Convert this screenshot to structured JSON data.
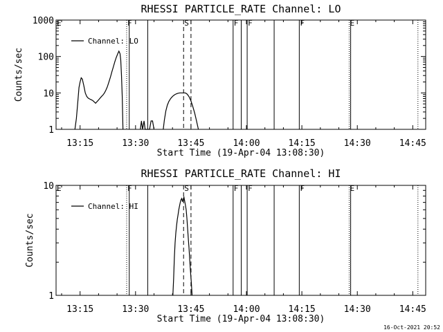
{
  "timestamp": "16-Oct-2021 20:52",
  "chart_data": [
    {
      "type": "line",
      "title": "RHESSI PARTICLE_RATE Channel: LO",
      "xlabel": "Start Time (19-Apr-04 13:08:30)",
      "ylabel": "Counts/sec",
      "yscale": "log",
      "xlim": [
        8.5,
        108.5
      ],
      "ylim": [
        1,
        1000
      ],
      "xticks": [
        {
          "v": 15,
          "label": "13:15"
        },
        {
          "v": 30,
          "label": "13:30"
        },
        {
          "v": 45,
          "label": "13:45"
        },
        {
          "v": 60,
          "label": "14:00"
        },
        {
          "v": 75,
          "label": "14:15"
        },
        {
          "v": 90,
          "label": "14:30"
        },
        {
          "v": 105,
          "label": "14:45"
        }
      ],
      "yticks": [
        {
          "v": 1,
          "label": "1"
        },
        {
          "v": 10,
          "label": "10"
        },
        {
          "v": 100,
          "label": "100"
        },
        {
          "v": 1000,
          "label": "1000"
        }
      ],
      "legend": "Channel: LO",
      "markers": [
        {
          "x": 8.5,
          "label": "E",
          "style": "none"
        },
        {
          "x": 27.6,
          "label": "F",
          "style": "dotted"
        },
        {
          "x": 28.3,
          "label": "",
          "style": "solid"
        },
        {
          "x": 33.3,
          "label": "",
          "style": "solid"
        },
        {
          "x": 43.0,
          "label": "S",
          "style": "dashed"
        },
        {
          "x": 45.0,
          "label": "",
          "style": "dashed"
        },
        {
          "x": 56.4,
          "label": "F",
          "style": "solid"
        },
        {
          "x": 58.6,
          "label": "",
          "style": "solid"
        },
        {
          "x": 60.2,
          "label": "F",
          "style": "solid"
        },
        {
          "x": 67.5,
          "label": "",
          "style": "solid"
        },
        {
          "x": 74.3,
          "label": "F",
          "style": "solid"
        },
        {
          "x": 87.8,
          "label": "E",
          "style": "dotted"
        },
        {
          "x": 88.2,
          "label": "",
          "style": "solid"
        },
        {
          "x": 106.4,
          "label": "",
          "style": "dotted"
        }
      ],
      "series": [
        {
          "name": "Channel: LO",
          "segments": [
            [
              [
                13.6,
                1
              ],
              [
                14.0,
                2
              ],
              [
                14.4,
                6
              ],
              [
                14.7,
                14
              ],
              [
                15.0,
                20
              ],
              [
                15.3,
                26
              ],
              [
                15.6,
                24
              ],
              [
                16.0,
                16
              ],
              [
                16.4,
                10
              ],
              [
                16.8,
                8
              ],
              [
                17.2,
                7.2
              ],
              [
                17.6,
                6.8
              ],
              [
                18.0,
                6.5
              ],
              [
                18.4,
                6.2
              ],
              [
                18.8,
                5.7
              ],
              [
                19.2,
                5.2
              ],
              [
                19.6,
                5.8
              ],
              [
                20.0,
                6.4
              ],
              [
                20.4,
                7.2
              ],
              [
                20.8,
                8.0
              ],
              [
                21.2,
                8.8
              ],
              [
                21.6,
                10
              ],
              [
                22.0,
                12
              ],
              [
                22.4,
                15
              ],
              [
                22.8,
                20
              ],
              [
                23.2,
                27
              ],
              [
                23.6,
                38
              ],
              [
                24.0,
                52
              ],
              [
                24.4,
                72
              ],
              [
                24.8,
                95
              ],
              [
                25.2,
                120
              ],
              [
                25.5,
                140
              ],
              [
                25.8,
                120
              ],
              [
                26.0,
                80
              ],
              [
                26.2,
                30
              ],
              [
                26.4,
                8
              ],
              [
                26.6,
                1
              ]
            ],
            [
              [
                31.3,
                1
              ],
              [
                31.6,
                1.7
              ],
              [
                31.9,
                1
              ],
              [
                32.3,
                1.7
              ],
              [
                32.6,
                1
              ],
              [
                33.8,
                1
              ],
              [
                34.2,
                1.7
              ],
              [
                34.6,
                1.7
              ],
              [
                35.0,
                1
              ]
            ],
            [
              [
                37.5,
                1
              ],
              [
                37.8,
                1.8
              ],
              [
                38.2,
                3.2
              ],
              [
                38.6,
                4.6
              ],
              [
                39.0,
                5.8
              ],
              [
                39.5,
                7.0
              ],
              [
                40.0,
                8.0
              ],
              [
                40.5,
                8.8
              ],
              [
                41.0,
                9.4
              ],
              [
                41.5,
                9.8
              ],
              [
                42.0,
                10.0
              ],
              [
                42.5,
                10.0
              ],
              [
                43.0,
                10.0
              ],
              [
                43.5,
                10.0
              ],
              [
                44.0,
                9.2
              ],
              [
                44.5,
                7.8
              ],
              [
                45.0,
                6.0
              ],
              [
                45.5,
                4.2
              ],
              [
                46.0,
                2.8
              ],
              [
                46.5,
                1.7
              ],
              [
                47.0,
                1
              ]
            ]
          ]
        }
      ]
    },
    {
      "type": "line",
      "title": "RHESSI PARTICLE_RATE Channel: HI",
      "xlabel": "Start Time (19-Apr-04 13:08:30)",
      "ylabel": "Counts/sec",
      "yscale": "log",
      "xlim": [
        8.5,
        108.5
      ],
      "ylim": [
        1,
        10
      ],
      "xticks": [
        {
          "v": 15,
          "label": "13:15"
        },
        {
          "v": 30,
          "label": "13:30"
        },
        {
          "v": 45,
          "label": "13:45"
        },
        {
          "v": 60,
          "label": "14:00"
        },
        {
          "v": 75,
          "label": "14:15"
        },
        {
          "v": 90,
          "label": "14:30"
        },
        {
          "v": 105,
          "label": "14:45"
        }
      ],
      "yticks": [
        {
          "v": 1,
          "label": "1"
        },
        {
          "v": 10,
          "label": "10"
        }
      ],
      "legend": "Channel: HI",
      "markers": [
        {
          "x": 8.5,
          "label": "E",
          "style": "none"
        },
        {
          "x": 27.6,
          "label": "F",
          "style": "dotted"
        },
        {
          "x": 28.3,
          "label": "",
          "style": "solid"
        },
        {
          "x": 33.3,
          "label": "",
          "style": "solid"
        },
        {
          "x": 43.0,
          "label": "S",
          "style": "dashed"
        },
        {
          "x": 45.0,
          "label": "",
          "style": "dashed"
        },
        {
          "x": 56.4,
          "label": "F",
          "style": "solid"
        },
        {
          "x": 58.6,
          "label": "",
          "style": "solid"
        },
        {
          "x": 60.2,
          "label": "F",
          "style": "solid"
        },
        {
          "x": 67.5,
          "label": "",
          "style": "solid"
        },
        {
          "x": 74.3,
          "label": "F",
          "style": "solid"
        },
        {
          "x": 87.8,
          "label": "E",
          "style": "dotted"
        },
        {
          "x": 88.2,
          "label": "",
          "style": "solid"
        },
        {
          "x": 106.4,
          "label": "",
          "style": "dotted"
        }
      ],
      "series": [
        {
          "name": "Channel: HI",
          "segments": [
            [
              [
                40.1,
                1
              ],
              [
                40.3,
                1.4
              ],
              [
                40.5,
                2.2
              ],
              [
                40.7,
                3.0
              ],
              [
                40.9,
                3.7
              ],
              [
                41.1,
                4.3
              ],
              [
                41.3,
                4.9
              ],
              [
                41.5,
                5.4
              ],
              [
                41.7,
                6.0
              ],
              [
                41.9,
                6.5
              ],
              [
                42.1,
                7.0
              ],
              [
                42.3,
                7.4
              ],
              [
                42.5,
                7.6
              ],
              [
                42.7,
                7.1
              ],
              [
                42.9,
                7.5
              ],
              [
                43.1,
                7.8
              ],
              [
                43.3,
                7.2
              ],
              [
                43.5,
                6.6
              ],
              [
                43.7,
                6.0
              ],
              [
                43.9,
                5.0
              ],
              [
                44.1,
                4.0
              ],
              [
                44.3,
                3.2
              ],
              [
                44.5,
                2.6
              ],
              [
                44.7,
                2.0
              ],
              [
                44.9,
                1.6
              ],
              [
                45.1,
                1.3
              ],
              [
                45.3,
                1
              ]
            ]
          ]
        }
      ]
    }
  ]
}
